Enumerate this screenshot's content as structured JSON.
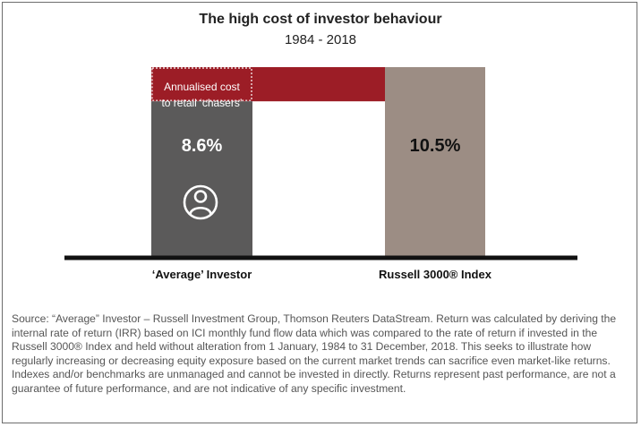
{
  "chart_data": {
    "type": "bar",
    "title": "The high cost of investor behaviour",
    "subtitle": "1984 - 2018",
    "categories": [
      "‘Average’ Investor",
      "Russell 3000® Index"
    ],
    "values": [
      8.6,
      10.5
    ],
    "value_labels": [
      "8.6%",
      "10.5%"
    ],
    "gap_label_line1": "Annualised cost",
    "gap_label_line2": "to retail ‘chasers’",
    "ylim": [
      0,
      10.5
    ],
    "xlabel": "",
    "ylabel": "",
    "grid": false,
    "colors": {
      "investor_bar": "#5b5a5a",
      "index_bar": "#9c8d84",
      "cost_band": "#9c1d26",
      "axis": "#111111"
    },
    "icons": [
      "person-icon"
    ]
  },
  "source_note": "Source: “Average” Investor – Russell Investment Group, Thomson Reuters DataStream. Return was calculated by deriving the internal rate of return (IRR) based on ICI monthly fund flow data which was compared to the rate of return if invested in the Russell 3000® Index and held without alteration from 1 January, 1984 to 31 December, 2018. This seeks to illustrate how regularly increasing or decreasing equity exposure based on the current market trends can sacrifice even market-like returns. Indexes and/or benchmarks are unmanaged and cannot be invested in directly. Returns represent past performance, are not a guarantee of future performance, and are not indicative of any specific investment."
}
